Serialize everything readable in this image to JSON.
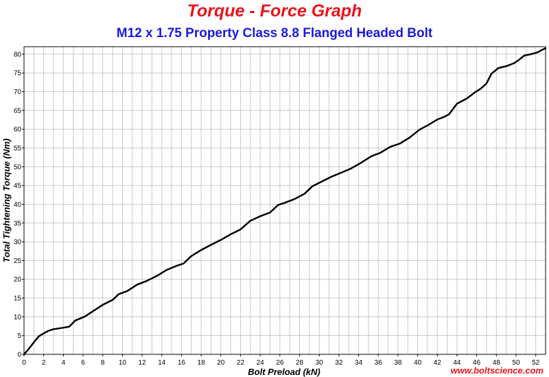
{
  "colors": {
    "title": "#e8141b",
    "subtitle": "#1a1adb",
    "watermark": "#e8141b",
    "grid": "#c8c8c8",
    "line": "#000000",
    "frame": "#000000"
  },
  "chart_data": {
    "type": "line",
    "title": "Torque - Force Graph",
    "subtitle": "M12 x 1.75 Property Class 8.8 Flanged Headed Bolt",
    "xlabel": "Bolt Preload (kN)",
    "ylabel": "Total Tightening Torque (Nm)",
    "xlim": [
      0,
      53
    ],
    "ylim": [
      0,
      82
    ],
    "x_ticks": [
      0,
      2,
      4,
      6,
      8,
      10,
      12,
      14,
      16,
      18,
      20,
      22,
      24,
      26,
      28,
      30,
      32,
      34,
      36,
      38,
      40,
      42,
      44,
      46,
      48,
      50,
      52
    ],
    "y_ticks": [
      0,
      5,
      10,
      15,
      20,
      25,
      30,
      35,
      40,
      45,
      50,
      55,
      60,
      65,
      70,
      75,
      80
    ],
    "x_minor_step": 1,
    "grid": true,
    "legend": "none",
    "series": [
      {
        "x": [
          0,
          0.5,
          1,
          1.5,
          2,
          2.5,
          3,
          3.5,
          4,
          4.6,
          5.2,
          6.2,
          7,
          8,
          9,
          9.6,
          10.5,
          11.5,
          12.5,
          13.5,
          14.5,
          15.5,
          16.2,
          17,
          18,
          19,
          20,
          21,
          22,
          23,
          24,
          25,
          25.8,
          26.5,
          27.5,
          28.5,
          29.3,
          30.2,
          31.2,
          32.2,
          33.2,
          34.2,
          35.3,
          36.2,
          37.2,
          38.2,
          39.2,
          40.2,
          41,
          42,
          42.7,
          43.2,
          44,
          45,
          45.8,
          46.4,
          47,
          47.5,
          48.2,
          49,
          49.8,
          50.3,
          50.8,
          51.5,
          52.2,
          52.6,
          53
        ],
        "y": [
          0,
          1.5,
          3.2,
          4.8,
          5.6,
          6.3,
          6.7,
          6.9,
          7.1,
          7.4,
          9,
          10.1,
          11.5,
          13.2,
          14.5,
          16,
          16.9,
          18.6,
          19.6,
          20.9,
          22.5,
          23.6,
          24.2,
          26.2,
          27.8,
          29.2,
          30.5,
          32,
          33.3,
          35.6,
          36.8,
          37.8,
          39.8,
          40.4,
          41.4,
          42.8,
          44.8,
          46,
          47.3,
          48.4,
          49.5,
          51,
          52.8,
          53.7,
          55.3,
          56.2,
          57.8,
          59.9,
          61,
          62.6,
          63.3,
          64,
          66.8,
          68.2,
          69.8,
          70.8,
          72.2,
          74.8,
          76.3,
          76.8,
          77.6,
          78.5,
          79.6,
          80,
          80.5,
          81.1,
          81.6
        ]
      }
    ]
  },
  "watermark": "www.boltscience.com"
}
